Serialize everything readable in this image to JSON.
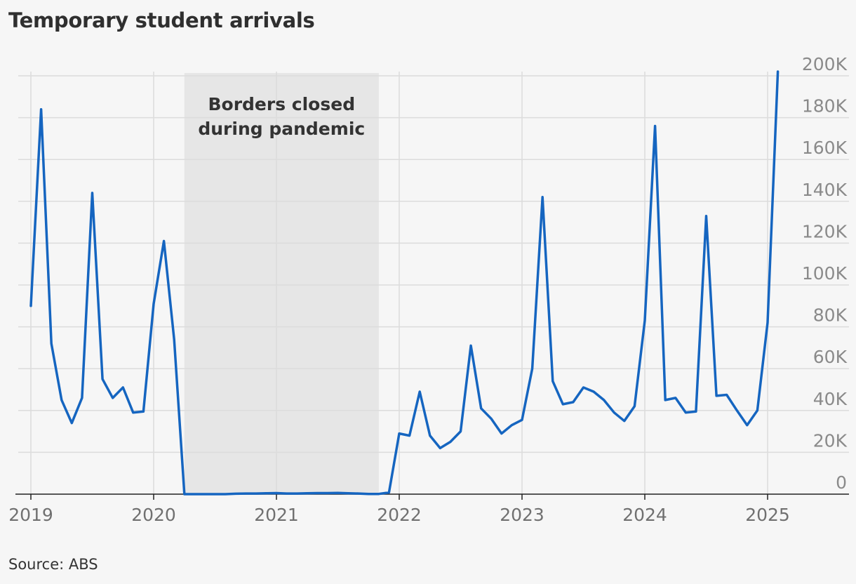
{
  "title": "Temporary student arrivals",
  "source": "Source: ABS",
  "chart_data": {
    "type": "line",
    "title": "Temporary student arrivals",
    "xlabel": "",
    "ylabel": "",
    "x_unit": "month",
    "x_start": "2019-01",
    "x_end": "2025-02",
    "ylim": [
      0,
      200000
    ],
    "y_ticks": [
      0,
      20000,
      40000,
      60000,
      80000,
      100000,
      120000,
      140000,
      160000,
      180000,
      200000
    ],
    "y_tick_labels": [
      "0",
      "20K",
      "40K",
      "60K",
      "80K",
      "100K",
      "120K",
      "140K",
      "160K",
      "180K",
      "200K"
    ],
    "y_axis_position": "right",
    "x_ticks": [
      "2019-01",
      "2020-01",
      "2021-01",
      "2022-01",
      "2023-01",
      "2024-01",
      "2025-01"
    ],
    "x_tick_labels": [
      "2019",
      "2020",
      "2021",
      "2022",
      "2023",
      "2024",
      "2025"
    ],
    "grid": true,
    "line_color": "#1565c0",
    "shaded_region": {
      "start": "2020-04",
      "end": "2021-11",
      "label_lines": [
        "Borders closed",
        "during pandemic"
      ],
      "color": "#e6e6e6"
    },
    "series": [
      {
        "values": [
          90000,
          184000,
          72000,
          45000,
          34000,
          46000,
          144000,
          55000,
          46000,
          51000,
          39000,
          39500,
          91000,
          121000,
          74000,
          0,
          0,
          0,
          0,
          0,
          200,
          300,
          300,
          400,
          500,
          300,
          300,
          400,
          500,
          500,
          600,
          400,
          300,
          100,
          100,
          800,
          29000,
          28000,
          49000,
          28000,
          22000,
          25000,
          30000,
          71000,
          41000,
          36000,
          29000,
          33000,
          35500,
          60000,
          142000,
          54000,
          43000,
          44000,
          51000,
          49000,
          45000,
          39000,
          35000,
          42000,
          83000,
          176000,
          45000,
          46000,
          39000,
          39500,
          133000,
          47000,
          47500,
          40000,
          33000,
          40000,
          82000,
          202000
        ]
      }
    ]
  }
}
